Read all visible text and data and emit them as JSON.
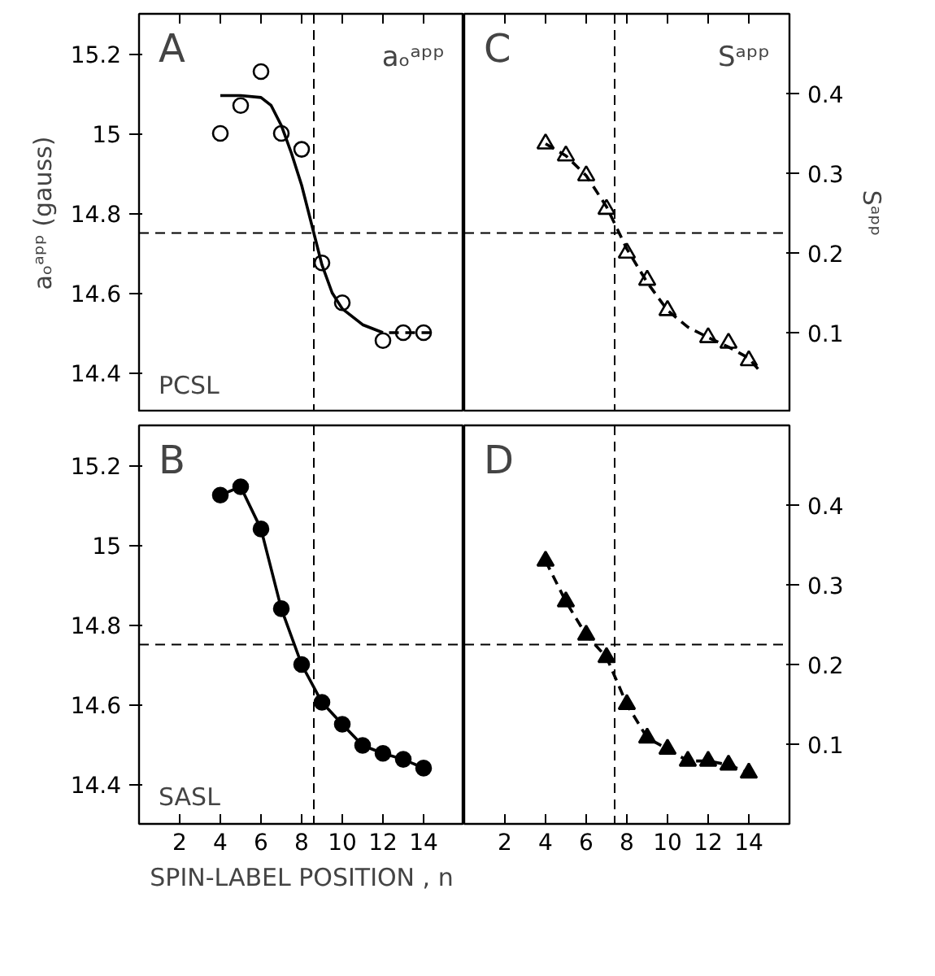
{
  "chart_data": [
    {
      "type": "scatter",
      "title": "A",
      "subtitle": "aₒᵃᵖᵖ",
      "ylabel": "aₒᵃᵖᵖ (gauss)",
      "annotations": [
        "PCSL"
      ],
      "xlim": [
        0,
        16
      ],
      "xticks": [
        2,
        4,
        6,
        8,
        10,
        12,
        14
      ],
      "ylim": [
        14.3,
        15.3
      ],
      "yticks": [
        14.4,
        14.6,
        14.8,
        15.0,
        15.2
      ],
      "tick_labels": "y",
      "grid": false,
      "ref_lines": [
        {
          "axis": "x",
          "value": 8.6,
          "line_style": "dashed"
        },
        {
          "axis": "y",
          "value": 14.75,
          "line_style": "dashed"
        }
      ],
      "series": [
        {
          "marker": "circle",
          "color": "#000000",
          "x": [
            4,
            5,
            6,
            7,
            8,
            9,
            10,
            12,
            13,
            14
          ],
          "values": [
            15.0,
            15.07,
            15.155,
            15.0,
            14.96,
            14.675,
            14.575,
            14.48,
            14.5,
            14.5
          ]
        },
        {
          "type": "line",
          "marker": "none",
          "line_style": "solid",
          "color": "#000000",
          "x": [
            4,
            5,
            6,
            6.5,
            7,
            7.5,
            8,
            8.5,
            9,
            9.5,
            10,
            11,
            12
          ],
          "values": [
            15.095,
            15.095,
            15.09,
            15.07,
            15.02,
            14.95,
            14.87,
            14.77,
            14.67,
            14.6,
            14.56,
            14.52,
            14.5
          ]
        },
        {
          "type": "line",
          "marker": "none",
          "line_style": "dashed",
          "color": "#000000",
          "x": [
            12.3,
            14.6
          ],
          "values": [
            14.5,
            14.5
          ]
        }
      ]
    },
    {
      "type": "scatter",
      "title": "C",
      "subtitle": "Sᵃᵖᵖ",
      "ylabel": "Sᵃᵖᵖ",
      "xlim": [
        0,
        16
      ],
      "xticks": [
        2,
        4,
        6,
        8,
        10,
        12,
        14
      ],
      "ylim": [
        0,
        0.5
      ],
      "yticks": [
        0.1,
        0.2,
        0.3,
        0.4
      ],
      "tick_labels": "y",
      "grid": false,
      "ref_lines": [
        {
          "axis": "x",
          "value": 7.4,
          "line_style": "dashed"
        },
        {
          "axis": "y",
          "value": 0.225,
          "line_style": "dashed"
        }
      ],
      "series": [
        {
          "marker": "triangle",
          "color": "#000000",
          "x": [
            4,
            5,
            6,
            7,
            8,
            9,
            10,
            12,
            13,
            14
          ],
          "values": [
            0.337,
            0.322,
            0.297,
            0.255,
            0.2,
            0.166,
            0.128,
            0.094,
            0.087,
            0.065
          ]
        },
        {
          "type": "line",
          "marker": "none",
          "line_style": "dashed",
          "color": "#000000",
          "x": [
            4,
            5,
            6,
            7,
            8,
            9,
            10,
            11,
            12,
            13,
            14,
            14.6
          ],
          "values": [
            0.337,
            0.322,
            0.297,
            0.258,
            0.205,
            0.163,
            0.128,
            0.107,
            0.094,
            0.082,
            0.068,
            0.05
          ]
        }
      ]
    },
    {
      "type": "scatter",
      "title": "B",
      "xlabel": "SPIN-LABEL POSITION , n",
      "annotations": [
        "SASL"
      ],
      "xlim": [
        0,
        16
      ],
      "xticks": [
        2,
        4,
        6,
        8,
        10,
        12,
        14
      ],
      "ylim": [
        14.3,
        15.3
      ],
      "yticks": [
        14.4,
        14.6,
        14.8,
        15.0,
        15.2
      ],
      "grid": false,
      "ref_lines": [
        {
          "axis": "x",
          "value": 8.6,
          "line_style": "dashed"
        },
        {
          "axis": "y",
          "value": 14.75,
          "line_style": "dashed"
        }
      ],
      "series": [
        {
          "marker": "circle",
          "color": "#000000",
          "x": [
            4,
            5,
            6,
            7,
            8,
            9,
            10,
            11,
            12,
            13,
            14
          ],
          "values": [
            15.125,
            15.146,
            15.04,
            14.84,
            14.7,
            14.605,
            14.55,
            14.497,
            14.477,
            14.462,
            14.44
          ]
        },
        {
          "type": "line",
          "marker": "none",
          "line_style": "solid",
          "color": "#000000",
          "x": [
            4,
            5,
            6,
            7,
            8,
            9,
            10,
            11,
            12,
            13,
            14
          ],
          "values": [
            15.125,
            15.146,
            15.04,
            14.84,
            14.7,
            14.605,
            14.55,
            14.497,
            14.477,
            14.462,
            14.44
          ]
        }
      ]
    },
    {
      "type": "scatter",
      "title": "D",
      "xlim": [
        0,
        16
      ],
      "xticks": [
        2,
        4,
        6,
        8,
        10,
        12,
        14
      ],
      "ylim": [
        0,
        0.5
      ],
      "yticks": [
        0.1,
        0.2,
        0.3,
        0.4
      ],
      "grid": false,
      "ref_lines": [
        {
          "axis": "x",
          "value": 7.4,
          "line_style": "dashed"
        },
        {
          "axis": "y",
          "value": 0.225,
          "line_style": "dashed"
        }
      ],
      "series": [
        {
          "marker": "triangle",
          "color": "#000000",
          "x": [
            4,
            5,
            6,
            7,
            8,
            9,
            10,
            11,
            12,
            13,
            14
          ],
          "values": [
            0.33,
            0.279,
            0.237,
            0.209,
            0.15,
            0.108,
            0.094,
            0.079,
            0.079,
            0.074,
            0.064
          ]
        },
        {
          "type": "line",
          "marker": "none",
          "line_style": "dashed",
          "color": "#000000",
          "x": [
            4,
            5,
            6,
            7,
            8,
            9,
            10,
            11,
            12,
            13,
            14
          ],
          "values": [
            0.33,
            0.279,
            0.237,
            0.209,
            0.15,
            0.108,
            0.094,
            0.079,
            0.079,
            0.074,
            0.064
          ]
        }
      ]
    }
  ]
}
